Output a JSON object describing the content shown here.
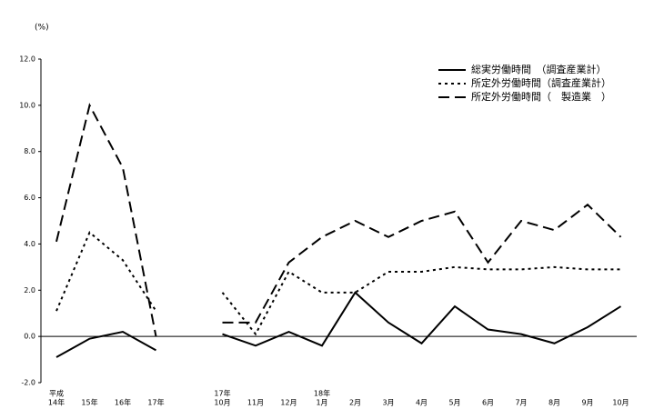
{
  "chart_data": {
    "type": "line",
    "y_unit": "(%)",
    "categories": [
      [
        "平成",
        "14年"
      ],
      [
        "15年"
      ],
      [
        "16年"
      ],
      [
        "17年"
      ],
      null,
      [
        "17年",
        "10月"
      ],
      [
        "11月"
      ],
      [
        "12月"
      ],
      [
        "18年",
        "1月"
      ],
      [
        "2月"
      ],
      [
        "3月"
      ],
      [
        "4月"
      ],
      [
        "5月"
      ],
      [
        "6月"
      ],
      [
        "7月"
      ],
      [
        "8月"
      ],
      [
        "9月"
      ],
      [
        "10月"
      ]
    ],
    "ylim": [
      -2,
      12
    ],
    "yticks": [
      {
        "value": -2,
        "label": "-2.0"
      },
      {
        "value": 0,
        "label": "0.0"
      },
      {
        "value": 2,
        "label": "2.0"
      },
      {
        "value": 4,
        "label": "4.0"
      },
      {
        "value": 6,
        "label": "6.0"
      },
      {
        "value": 8,
        "label": "8.0"
      },
      {
        "value": 10,
        "label": "10.0"
      },
      {
        "value": 12,
        "label": "12.0"
      }
    ],
    "series": [
      {
        "name": "総実労働時間　（調査産業計）",
        "color": "#000000",
        "dash": "none",
        "values": [
          -0.9,
          -0.1,
          0.2,
          -0.6,
          null,
          0.1,
          -0.4,
          0.2,
          -0.4,
          1.9,
          0.6,
          -0.3,
          1.3,
          0.3,
          0.1,
          -0.3,
          0.4,
          1.3
        ]
      },
      {
        "name": "所定外労働時間（調査産業計）",
        "color": "#000000",
        "dash": "3,4",
        "values": [
          1.1,
          4.5,
          3.3,
          1.1,
          null,
          1.9,
          0.1,
          2.8,
          1.9,
          1.9,
          2.8,
          2.8,
          3.0,
          2.9,
          2.9,
          3.0,
          2.9,
          2.9
        ]
      },
      {
        "name": "所定外労働時間（　製造業　）",
        "color": "#000000",
        "dash": "12,6",
        "values": [
          4.1,
          10.0,
          7.3,
          0.0,
          null,
          0.6,
          0.6,
          3.2,
          4.3,
          5.0,
          4.3,
          5.0,
          5.4,
          3.2,
          5.0,
          4.6,
          5.7,
          4.3
        ]
      }
    ]
  }
}
